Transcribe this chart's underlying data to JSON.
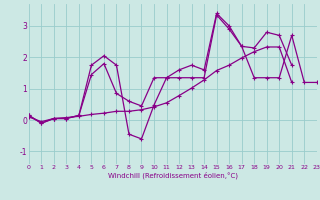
{
  "background_color": "#cce8e4",
  "line_color": "#880088",
  "xlabel": "Windchill (Refroidissement éolien,°C)",
  "x_ticks": [
    0,
    1,
    2,
    3,
    4,
    5,
    6,
    7,
    8,
    9,
    10,
    11,
    12,
    13,
    14,
    15,
    16,
    17,
    18,
    19,
    20,
    21,
    22,
    23
  ],
  "ylim": [
    -1.4,
    3.7
  ],
  "xlim": [
    0,
    23
  ],
  "yticks": [
    -1,
    0,
    1,
    2,
    3
  ],
  "grid_color": "#99cccc",
  "series1_x": [
    0,
    1,
    2,
    3,
    4,
    5,
    6,
    7,
    8,
    9,
    10,
    11,
    12,
    13,
    14,
    15,
    16,
    17,
    18,
    19,
    20,
    21,
    22,
    23
  ],
  "series1_y": [
    0.15,
    -0.1,
    0.05,
    0.05,
    0.15,
    1.45,
    1.8,
    0.85,
    0.6,
    0.45,
    1.35,
    1.35,
    1.35,
    1.35,
    1.35,
    3.35,
    2.9,
    2.35,
    1.35,
    1.35,
    1.35,
    2.7,
    1.2,
    1.2
  ],
  "series2_x": [
    0,
    1,
    2,
    3,
    4,
    5,
    6,
    7,
    8,
    9,
    10,
    11,
    12,
    13,
    14,
    15,
    16,
    17,
    18,
    19,
    20,
    21
  ],
  "series2_y": [
    0.15,
    -0.1,
    0.05,
    0.05,
    0.15,
    1.75,
    2.05,
    1.75,
    -0.45,
    -0.6,
    0.48,
    1.35,
    1.6,
    1.75,
    1.6,
    3.4,
    3.0,
    2.35,
    2.3,
    2.8,
    2.7,
    1.75
  ],
  "series3_x": [
    0,
    1,
    2,
    3,
    4,
    5,
    6,
    7,
    8,
    9,
    10,
    11,
    12,
    13,
    14,
    15,
    16,
    17,
    18,
    19,
    20,
    21
  ],
  "series3_y": [
    0.1,
    -0.05,
    0.05,
    0.08,
    0.12,
    0.18,
    0.22,
    0.28,
    0.28,
    0.33,
    0.42,
    0.55,
    0.78,
    1.02,
    1.28,
    1.58,
    1.75,
    1.98,
    2.18,
    2.33,
    2.33,
    1.2
  ]
}
